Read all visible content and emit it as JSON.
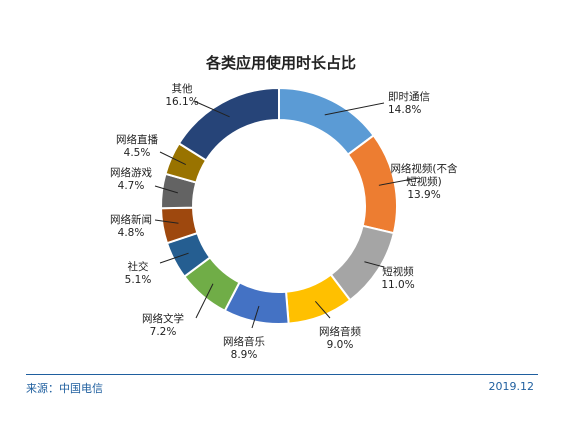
{
  "chart_data": {
    "type": "pie",
    "title": "各类应用使用时长占比",
    "unit": "%",
    "slices": [
      {
        "label": "即时通信",
        "value": 14.8,
        "display": "14.8%",
        "color": "#5b9bd5"
      },
      {
        "label": "网络视频(不含短视频)",
        "value": 13.9,
        "display": "13.9%",
        "color": "#ed7d31"
      },
      {
        "label": "短视频",
        "value": 11.0,
        "display": "11.0%",
        "color": "#a5a5a5"
      },
      {
        "label": "网络音频",
        "value": 9.0,
        "display": "9.0%",
        "color": "#ffc000"
      },
      {
        "label": "网络音乐",
        "value": 8.9,
        "display": "8.9%",
        "color": "#4472c4"
      },
      {
        "label": "网络文学",
        "value": 7.2,
        "display": "7.2%",
        "color": "#70ad47"
      },
      {
        "label": "社交",
        "value": 5.1,
        "display": "5.1%",
        "color": "#255e91"
      },
      {
        "label": "网络新闻",
        "value": 4.8,
        "display": "4.8%",
        "color": "#9e480e"
      },
      {
        "label": "网络游戏",
        "value": 4.7,
        "display": "4.7%",
        "color": "#636363"
      },
      {
        "label": "网络直播",
        "value": 4.5,
        "display": "4.5%",
        "color": "#997300"
      },
      {
        "label": "其他",
        "value": 16.1,
        "display": "16.1%",
        "color": "#264478"
      }
    ]
  },
  "footer": {
    "source": "来源：中国电信",
    "date": "2019.12"
  }
}
